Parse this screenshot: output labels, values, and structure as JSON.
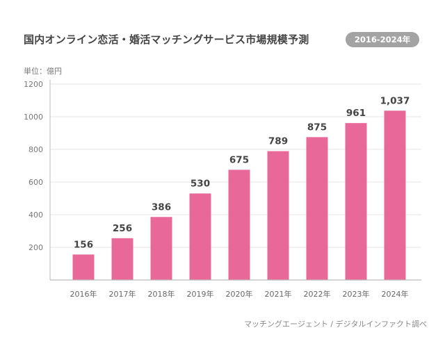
{
  "header": {
    "title": "国内オンライン恋活・婚活マッチングサービス市場規模予測",
    "period_badge": "2016-2024年"
  },
  "chart_data": {
    "type": "bar",
    "title": "国内オンライン恋活・婚活マッチングサービス市場規模予測",
    "subtitle": "2016-2024年",
    "unit_label": "単位：億円",
    "categories": [
      "2016年",
      "2017年",
      "2018年",
      "2019年",
      "2020年",
      "2021年",
      "2022年",
      "2023年",
      "2024年"
    ],
    "values": [
      156,
      256,
      386,
      530,
      675,
      789,
      875,
      961,
      1037
    ],
    "value_labels": [
      "156",
      "256",
      "386",
      "530",
      "675",
      "789",
      "875",
      "961",
      "1,037"
    ],
    "yticks": [
      200,
      400,
      600,
      800,
      1000,
      1200
    ],
    "ylim": [
      0,
      1200
    ],
    "grid": true,
    "bar_color": "#e8689a",
    "source": "マッチングエージェント / デジタルインファクト調べ"
  },
  "colors": {
    "bar": "#e8689a",
    "grid": "#e6e6e6",
    "axis": "#bbbbbb",
    "title_text": "#444444",
    "badge_bg": "#a3a3a3"
  }
}
